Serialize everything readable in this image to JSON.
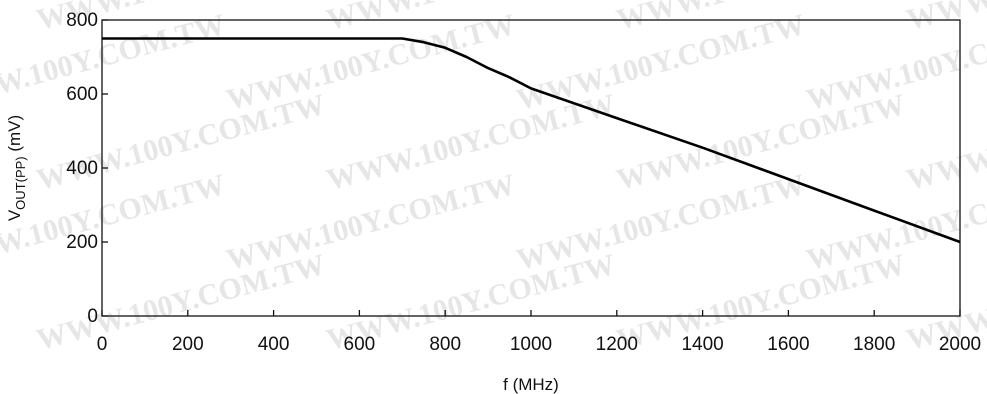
{
  "chart_data": {
    "type": "line",
    "title": "",
    "xlabel": "f (MHz)",
    "ylabel": {
      "base": "V",
      "subscript": "OUT(PP)",
      "unit": " (mV)"
    },
    "xlim": [
      0,
      2000
    ],
    "ylim": [
      0,
      800
    ],
    "x_ticks": [
      0,
      200,
      400,
      600,
      800,
      1000,
      1200,
      1400,
      1600,
      1800,
      2000
    ],
    "y_ticks": [
      0,
      200,
      400,
      600,
      800
    ],
    "grid": false,
    "series": [
      {
        "x": [
          0,
          700,
          750,
          800,
          850,
          900,
          950,
          1000,
          1200,
          1400,
          1600,
          1800,
          2000
        ],
        "y": [
          750,
          750,
          740,
          725,
          700,
          670,
          645,
          615,
          535,
          455,
          370,
          285,
          200
        ]
      }
    ],
    "watermark": "WWW.100Y.COM.TW"
  }
}
